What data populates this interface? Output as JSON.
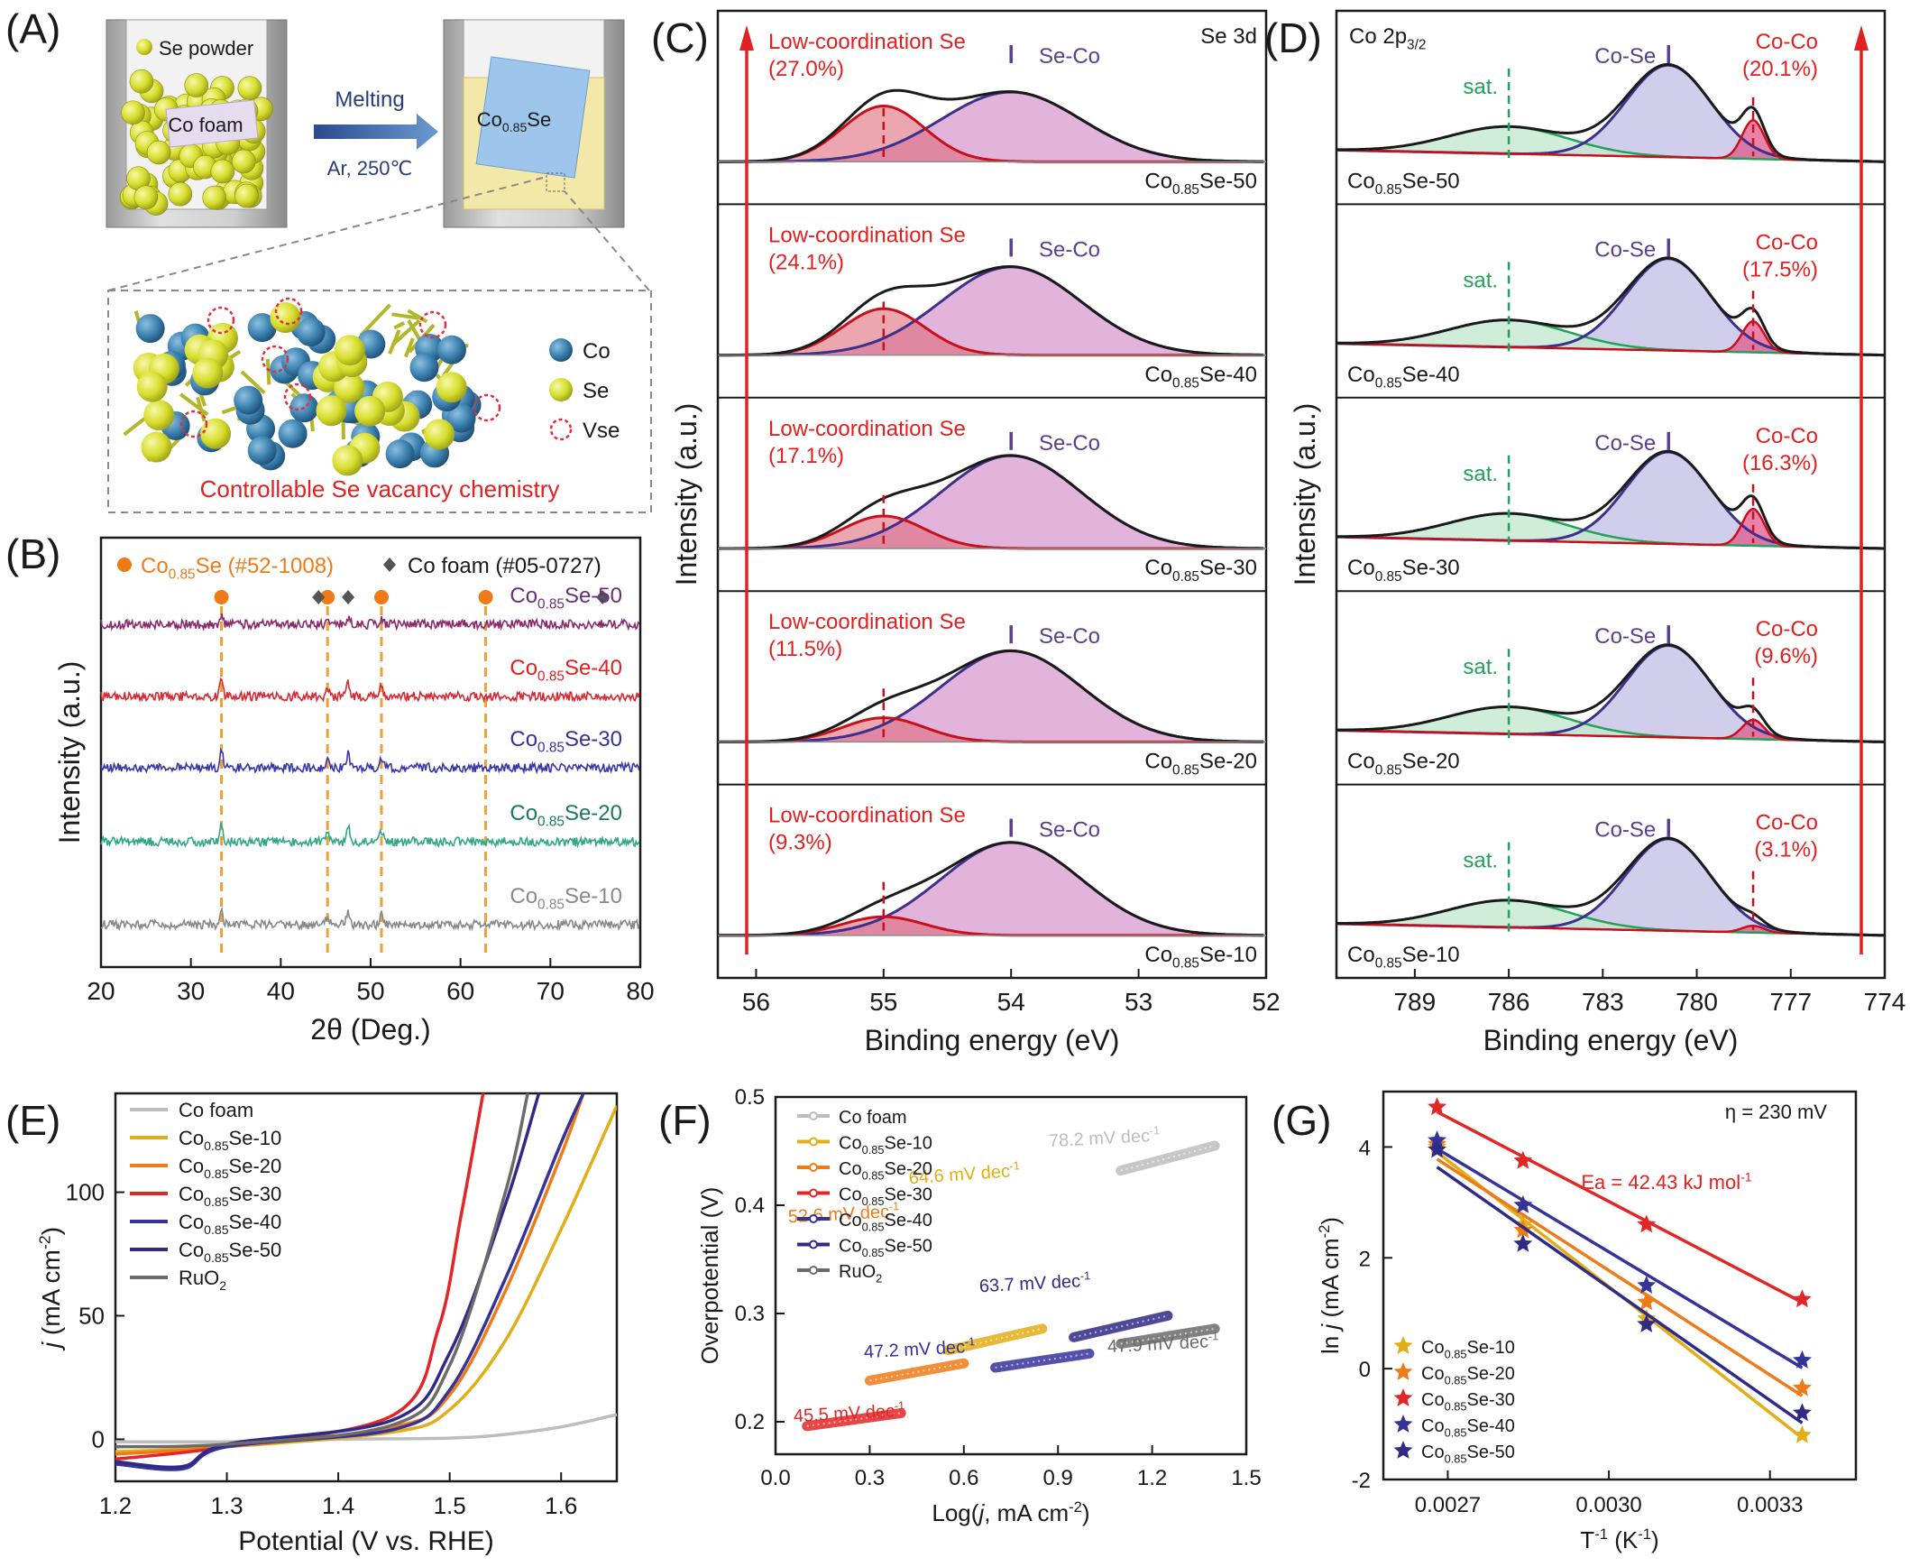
{
  "colors": {
    "axis": "#1a1a1a",
    "text": "#1a1a1a",
    "accent_red": "#e22020",
    "accent_orange": "#ef7a18",
    "co_foam": "#bdbdbd",
    "s10": "#e3ad16",
    "s20": "#ef7a18",
    "s30": "#e22626",
    "s40": "#35329a",
    "s50": "#2f2a86",
    "ruo2": "#6b6b6b",
    "se_co_fill": "#d899cf",
    "se_co_line": "#3d2f8c",
    "low_fill": "#e06a7c",
    "low_line": "#c8101c",
    "co_se_fill": "#c8c6e8",
    "co_co_fill": "#e0588c",
    "sat_fill": "#c4e8d0",
    "sat_line": "#24a05a",
    "envelope": "#1a1a1a",
    "baseline": "#8a8a8a"
  },
  "panel_a": {
    "label": "(A)",
    "se_powder": "Se powder",
    "co_foam": "Co foam",
    "melting": "Melting",
    "conditions": "Ar, 250℃",
    "product_main": "Co",
    "product_sub": "0.85",
    "product_tail": "Se",
    "legend": [
      "Co",
      "Se",
      "Vse"
    ],
    "caption": "Controllable Se vacancy chemistry"
  },
  "panel_b": {
    "label": "(B)",
    "ref1_main": "Co",
    "ref1_sub": "0.85",
    "ref1_tail": "Se (#52-1008)",
    "ref2": "Co foam (#05-0727)",
    "traces": [
      {
        "main": "Co",
        "sub": "0.85",
        "tail": "Se-50"
      },
      {
        "main": "Co",
        "sub": "0.85",
        "tail": "Se-40"
      },
      {
        "main": "Co",
        "sub": "0.85",
        "tail": "Se-30"
      },
      {
        "main": "Co",
        "sub": "0.85",
        "tail": "Se-20"
      },
      {
        "main": "Co",
        "sub": "0.85",
        "tail": "Se-10"
      }
    ],
    "ylabel": "Intensity (a.u.)",
    "xlabel": "2θ (Deg.)",
    "xticks": [
      "20",
      "30",
      "40",
      "50",
      "60",
      "70",
      "80"
    ]
  },
  "panel_c": {
    "label": "(C)",
    "corner": "Se 3d",
    "ylabel": "Intensity (a.u.)",
    "xlabel": "Binding energy (eV)",
    "xticks": [
      "56",
      "55",
      "54",
      "53",
      "52"
    ],
    "low_label": "Low-coordination Se",
    "peak_label": "Se-Co",
    "percents": [
      "(27.0%)",
      "(24.1%)",
      "(17.1%)",
      "(11.5%)",
      "(9.3%)"
    ],
    "samples": [
      {
        "main": "Co",
        "sub": "0.85",
        "tail": "Se-50"
      },
      {
        "main": "Co",
        "sub": "0.85",
        "tail": "Se-40"
      },
      {
        "main": "Co",
        "sub": "0.85",
        "tail": "Se-30"
      },
      {
        "main": "Co",
        "sub": "0.85",
        "tail": "Se-20"
      },
      {
        "main": "Co",
        "sub": "0.85",
        "tail": "Se-10"
      }
    ]
  },
  "panel_d": {
    "label": "(D)",
    "corner_main": "Co 2p",
    "corner_sub": "3/2",
    "ylabel": "Intensity (a.u.)",
    "xlabel": "Binding energy (eV)",
    "xticks": [
      "789",
      "786",
      "783",
      "780",
      "777",
      "774"
    ],
    "sat_label": "sat.",
    "peak_label": "Co-Se",
    "coco_label": "Co-Co",
    "percents": [
      "(20.1%)",
      "(17.5%)",
      "(16.3%)",
      "(9.6%)",
      "(3.1%)"
    ],
    "samples": [
      {
        "main": "Co",
        "sub": "0.85",
        "tail": "Se-50"
      },
      {
        "main": "Co",
        "sub": "0.85",
        "tail": "Se-40"
      },
      {
        "main": "Co",
        "sub": "0.85",
        "tail": "Se-30"
      },
      {
        "main": "Co",
        "sub": "0.85",
        "tail": "Se-20"
      },
      {
        "main": "Co",
        "sub": "0.85",
        "tail": "Se-10"
      }
    ]
  },
  "panel_e": {
    "label": "(E)",
    "ylabel_main": "j",
    "ylabel_rest": " (mA cm",
    "ylabel_sup": "-2",
    "ylabel_end": ")",
    "xlabel": "Potential (V vs. RHE)",
    "xticks": [
      "1.2",
      "1.3",
      "1.4",
      "1.5",
      "1.6"
    ],
    "yticks": [
      "0",
      "50",
      "100"
    ],
    "legend": [
      {
        "main": "Co foam",
        "sub": "",
        "tail": ""
      },
      {
        "main": "Co",
        "sub": "0.85",
        "tail": "Se-10"
      },
      {
        "main": "Co",
        "sub": "0.85",
        "tail": "Se-20"
      },
      {
        "main": "Co",
        "sub": "0.85",
        "tail": "Se-30"
      },
      {
        "main": "Co",
        "sub": "0.85",
        "tail": "Se-40"
      },
      {
        "main": "Co",
        "sub": "0.85",
        "tail": "Se-50"
      },
      {
        "main": "RuO",
        "sub": "2",
        "tail": ""
      }
    ]
  },
  "panel_f": {
    "label": "(F)",
    "ylabel": "Overpotential (V)",
    "xlabel_main": "Log(",
    "xlabel_j": "j",
    "xlabel_rest": ", mA cm",
    "xlabel_sup": "-2",
    "xlabel_end": ")",
    "xticks": [
      "0.0",
      "0.3",
      "0.6",
      "0.9",
      "1.2",
      "1.5"
    ],
    "yticks": [
      "0.2",
      "0.3",
      "0.4",
      "0.5"
    ],
    "legend": [
      {
        "main": "Co foam",
        "sub": "",
        "tail": ""
      },
      {
        "main": "Co",
        "sub": "0.85",
        "tail": "Se-10"
      },
      {
        "main": "Co",
        "sub": "0.85",
        "tail": "Se-20"
      },
      {
        "main": "Co",
        "sub": "0.85",
        "tail": "Se-30"
      },
      {
        "main": "Co",
        "sub": "0.85",
        "tail": "Se-40"
      },
      {
        "main": "Co",
        "sub": "0.85",
        "tail": "Se-50"
      },
      {
        "main": "RuO",
        "sub": "2",
        "tail": ""
      }
    ],
    "slope_unit": " mV dec",
    "slope_sup": "-1"
  },
  "panel_g": {
    "label": "(G)",
    "eta": "η = 230 mV",
    "ea": "Ea = 42.43 kJ mol",
    "ea_sup": "-1",
    "ylabel_main": "ln ",
    "ylabel_j": "j",
    "ylabel_rest": " (mA cm",
    "ylabel_sup": "-2",
    "ylabel_end": ")",
    "xlabel_main": "T",
    "xlabel_sup": "-1",
    "xlabel_end": " (K",
    "xlabel_sup2": "-1",
    "xlabel_close": ")",
    "xticks": [
      "0.0027",
      "0.0030",
      "0.0033"
    ],
    "yticks": [
      "-2",
      "0",
      "2",
      "4"
    ],
    "legend": [
      {
        "main": "Co",
        "sub": "0.85",
        "tail": "Se-10"
      },
      {
        "main": "Co",
        "sub": "0.85",
        "tail": "Se-20"
      },
      {
        "main": "Co",
        "sub": "0.85",
        "tail": "Se-30"
      },
      {
        "main": "Co",
        "sub": "0.85",
        "tail": "Se-40"
      },
      {
        "main": "Co",
        "sub": "0.85",
        "tail": "Se-50"
      }
    ]
  },
  "chart_data": [
    {
      "panel": "B",
      "type": "line",
      "xlabel": "2θ (Deg.)",
      "ylabel": "Intensity (a.u.)",
      "xlim": [
        20,
        80
      ],
      "reference_peaks": {
        "Co0.85Se (#52-1008)": [
          33.4,
          45.2,
          51.2,
          62.8
        ],
        "Co foam (#05-0727)": [
          44.2,
          47.5,
          75.8
        ]
      },
      "series": [
        {
          "name": "Co0.85Se-50"
        },
        {
          "name": "Co0.85Se-40"
        },
        {
          "name": "Co0.85Se-30"
        },
        {
          "name": "Co0.85Se-20"
        },
        {
          "name": "Co0.85Se-10"
        }
      ]
    },
    {
      "panel": "C",
      "type": "area",
      "title": "Se 3d",
      "xlabel": "Binding energy (eV)",
      "ylabel": "Intensity (a.u.)",
      "xlim": [
        56.3,
        52
      ],
      "x_reversed": true,
      "peaks": {
        "Low-coordination Se": 55.0,
        "Se-Co": 54.0
      },
      "series": [
        {
          "name": "Co0.85Se-50",
          "low_coordination_percent": 27.0
        },
        {
          "name": "Co0.85Se-40",
          "low_coordination_percent": 24.1
        },
        {
          "name": "Co0.85Se-30",
          "low_coordination_percent": 17.1
        },
        {
          "name": "Co0.85Se-20",
          "low_coordination_percent": 11.5
        },
        {
          "name": "Co0.85Se-10",
          "low_coordination_percent": 9.3
        }
      ]
    },
    {
      "panel": "D",
      "type": "area",
      "title": "Co 2p3/2",
      "xlabel": "Binding energy (eV)",
      "ylabel": "Intensity (a.u.)",
      "xlim": [
        791.5,
        774
      ],
      "x_reversed": true,
      "peaks": {
        "sat.": 786.0,
        "Co-Se": 780.9,
        "Co-Co": 778.2
      },
      "series": [
        {
          "name": "Co0.85Se-50",
          "co_co_percent": 20.1
        },
        {
          "name": "Co0.85Se-40",
          "co_co_percent": 17.5
        },
        {
          "name": "Co0.85Se-30",
          "co_co_percent": 16.3
        },
        {
          "name": "Co0.85Se-20",
          "co_co_percent": 9.6
        },
        {
          "name": "Co0.85Se-10",
          "co_co_percent": 3.1
        }
      ]
    },
    {
      "panel": "E",
      "type": "line",
      "xlabel": "Potential (V vs. RHE)",
      "ylabel": "j (mA cm-2)",
      "xlim": [
        1.2,
        1.65
      ],
      "ylim": [
        -17,
        140
      ],
      "series": [
        {
          "name": "Co foam",
          "x": [
            1.2,
            1.3,
            1.4,
            1.5,
            1.55,
            1.6,
            1.65
          ],
          "y": [
            -1,
            -1,
            0,
            0.5,
            2,
            5,
            10
          ]
        },
        {
          "name": "Co0.85Se-10",
          "x": [
            1.2,
            1.3,
            1.45,
            1.5,
            1.55,
            1.6,
            1.65
          ],
          "y": [
            -5,
            -3,
            3,
            12,
            40,
            85,
            135
          ]
        },
        {
          "name": "Co0.85Se-20",
          "x": [
            1.2,
            1.3,
            1.45,
            1.5,
            1.55,
            1.6,
            1.62
          ],
          "y": [
            -6,
            -3,
            5,
            18,
            60,
            115,
            140
          ]
        },
        {
          "name": "Co0.85Se-30",
          "x": [
            1.2,
            1.3,
            1.45,
            1.49,
            1.51,
            1.53
          ],
          "y": [
            -8,
            -3,
            10,
            45,
            90,
            140
          ]
        },
        {
          "name": "Co0.85Se-40",
          "x": [
            1.2,
            1.26,
            1.3,
            1.45,
            1.5,
            1.55,
            1.6,
            1.62
          ],
          "y": [
            -10,
            -12,
            -3,
            4,
            20,
            65,
            120,
            140
          ]
        },
        {
          "name": "Co0.85Se-50",
          "x": [
            1.2,
            1.26,
            1.3,
            1.45,
            1.5,
            1.55,
            1.58
          ],
          "y": [
            -9,
            -11,
            -2,
            8,
            35,
            95,
            140
          ]
        },
        {
          "name": "RuO2",
          "x": [
            1.2,
            1.3,
            1.45,
            1.5,
            1.55,
            1.57
          ],
          "y": [
            -3,
            -2,
            6,
            30,
            100,
            140
          ]
        }
      ]
    },
    {
      "panel": "F",
      "type": "line",
      "xlabel": "Log(j, mA cm-2)",
      "ylabel": "Overpotential (V)",
      "xlim": [
        0,
        1.5
      ],
      "ylim": [
        0.17,
        0.5
      ],
      "series": [
        {
          "name": "Co foam",
          "slope_label": "78.2 mV dec-1",
          "x": [
            1.1,
            1.4
          ],
          "y": [
            0.432,
            0.455
          ]
        },
        {
          "name": "Co0.85Se-10",
          "slope_label": "64.6 mV dec-1",
          "x": [
            0.55,
            0.85
          ],
          "y": [
            0.266,
            0.286
          ]
        },
        {
          "name": "Co0.85Se-20",
          "slope_label": "52.6 mV dec-1",
          "x": [
            0.3,
            0.6
          ],
          "y": [
            0.238,
            0.254
          ]
        },
        {
          "name": "Co0.85Se-30",
          "slope_label": "45.5 mV dec-1",
          "x": [
            0.1,
            0.4
          ],
          "y": [
            0.196,
            0.208
          ]
        },
        {
          "name": "Co0.85Se-40",
          "slope_label": "47.2 mV dec-1",
          "x": [
            0.7,
            1.0
          ],
          "y": [
            0.25,
            0.263
          ]
        },
        {
          "name": "Co0.85Se-50",
          "slope_label": "63.7 mV dec-1",
          "x": [
            0.95,
            1.25
          ],
          "y": [
            0.278,
            0.298
          ]
        },
        {
          "name": "RuO2",
          "slope_label": "47.9 mV dec-1",
          "x": [
            1.1,
            1.4
          ],
          "y": [
            0.272,
            0.286
          ]
        }
      ]
    },
    {
      "panel": "G",
      "type": "scatter",
      "xlabel": "T-1 (K-1)",
      "ylabel": "ln j (mA cm-2)",
      "annotations": [
        "η = 230 mV",
        "Ea = 42.43 kJ mol-1"
      ],
      "xlim": [
        0.00258,
        0.00346
      ],
      "ylim": [
        -2,
        5
      ],
      "x": [
        0.00268,
        0.00284,
        0.00307,
        0.00336
      ],
      "series": [
        {
          "name": "Co0.85Se-10",
          "y": [
            4.0,
            2.6,
            0.9,
            -1.2
          ]
        },
        {
          "name": "Co0.85Se-20",
          "y": [
            4.05,
            2.5,
            1.2,
            -0.35
          ]
        },
        {
          "name": "Co0.85Se-30",
          "y": [
            4.72,
            3.75,
            2.6,
            1.25
          ]
        },
        {
          "name": "Co0.85Se-40",
          "y": [
            4.12,
            2.95,
            1.5,
            0.15
          ]
        },
        {
          "name": "Co0.85Se-50",
          "y": [
            3.95,
            2.25,
            0.8,
            -0.8
          ]
        }
      ]
    }
  ]
}
